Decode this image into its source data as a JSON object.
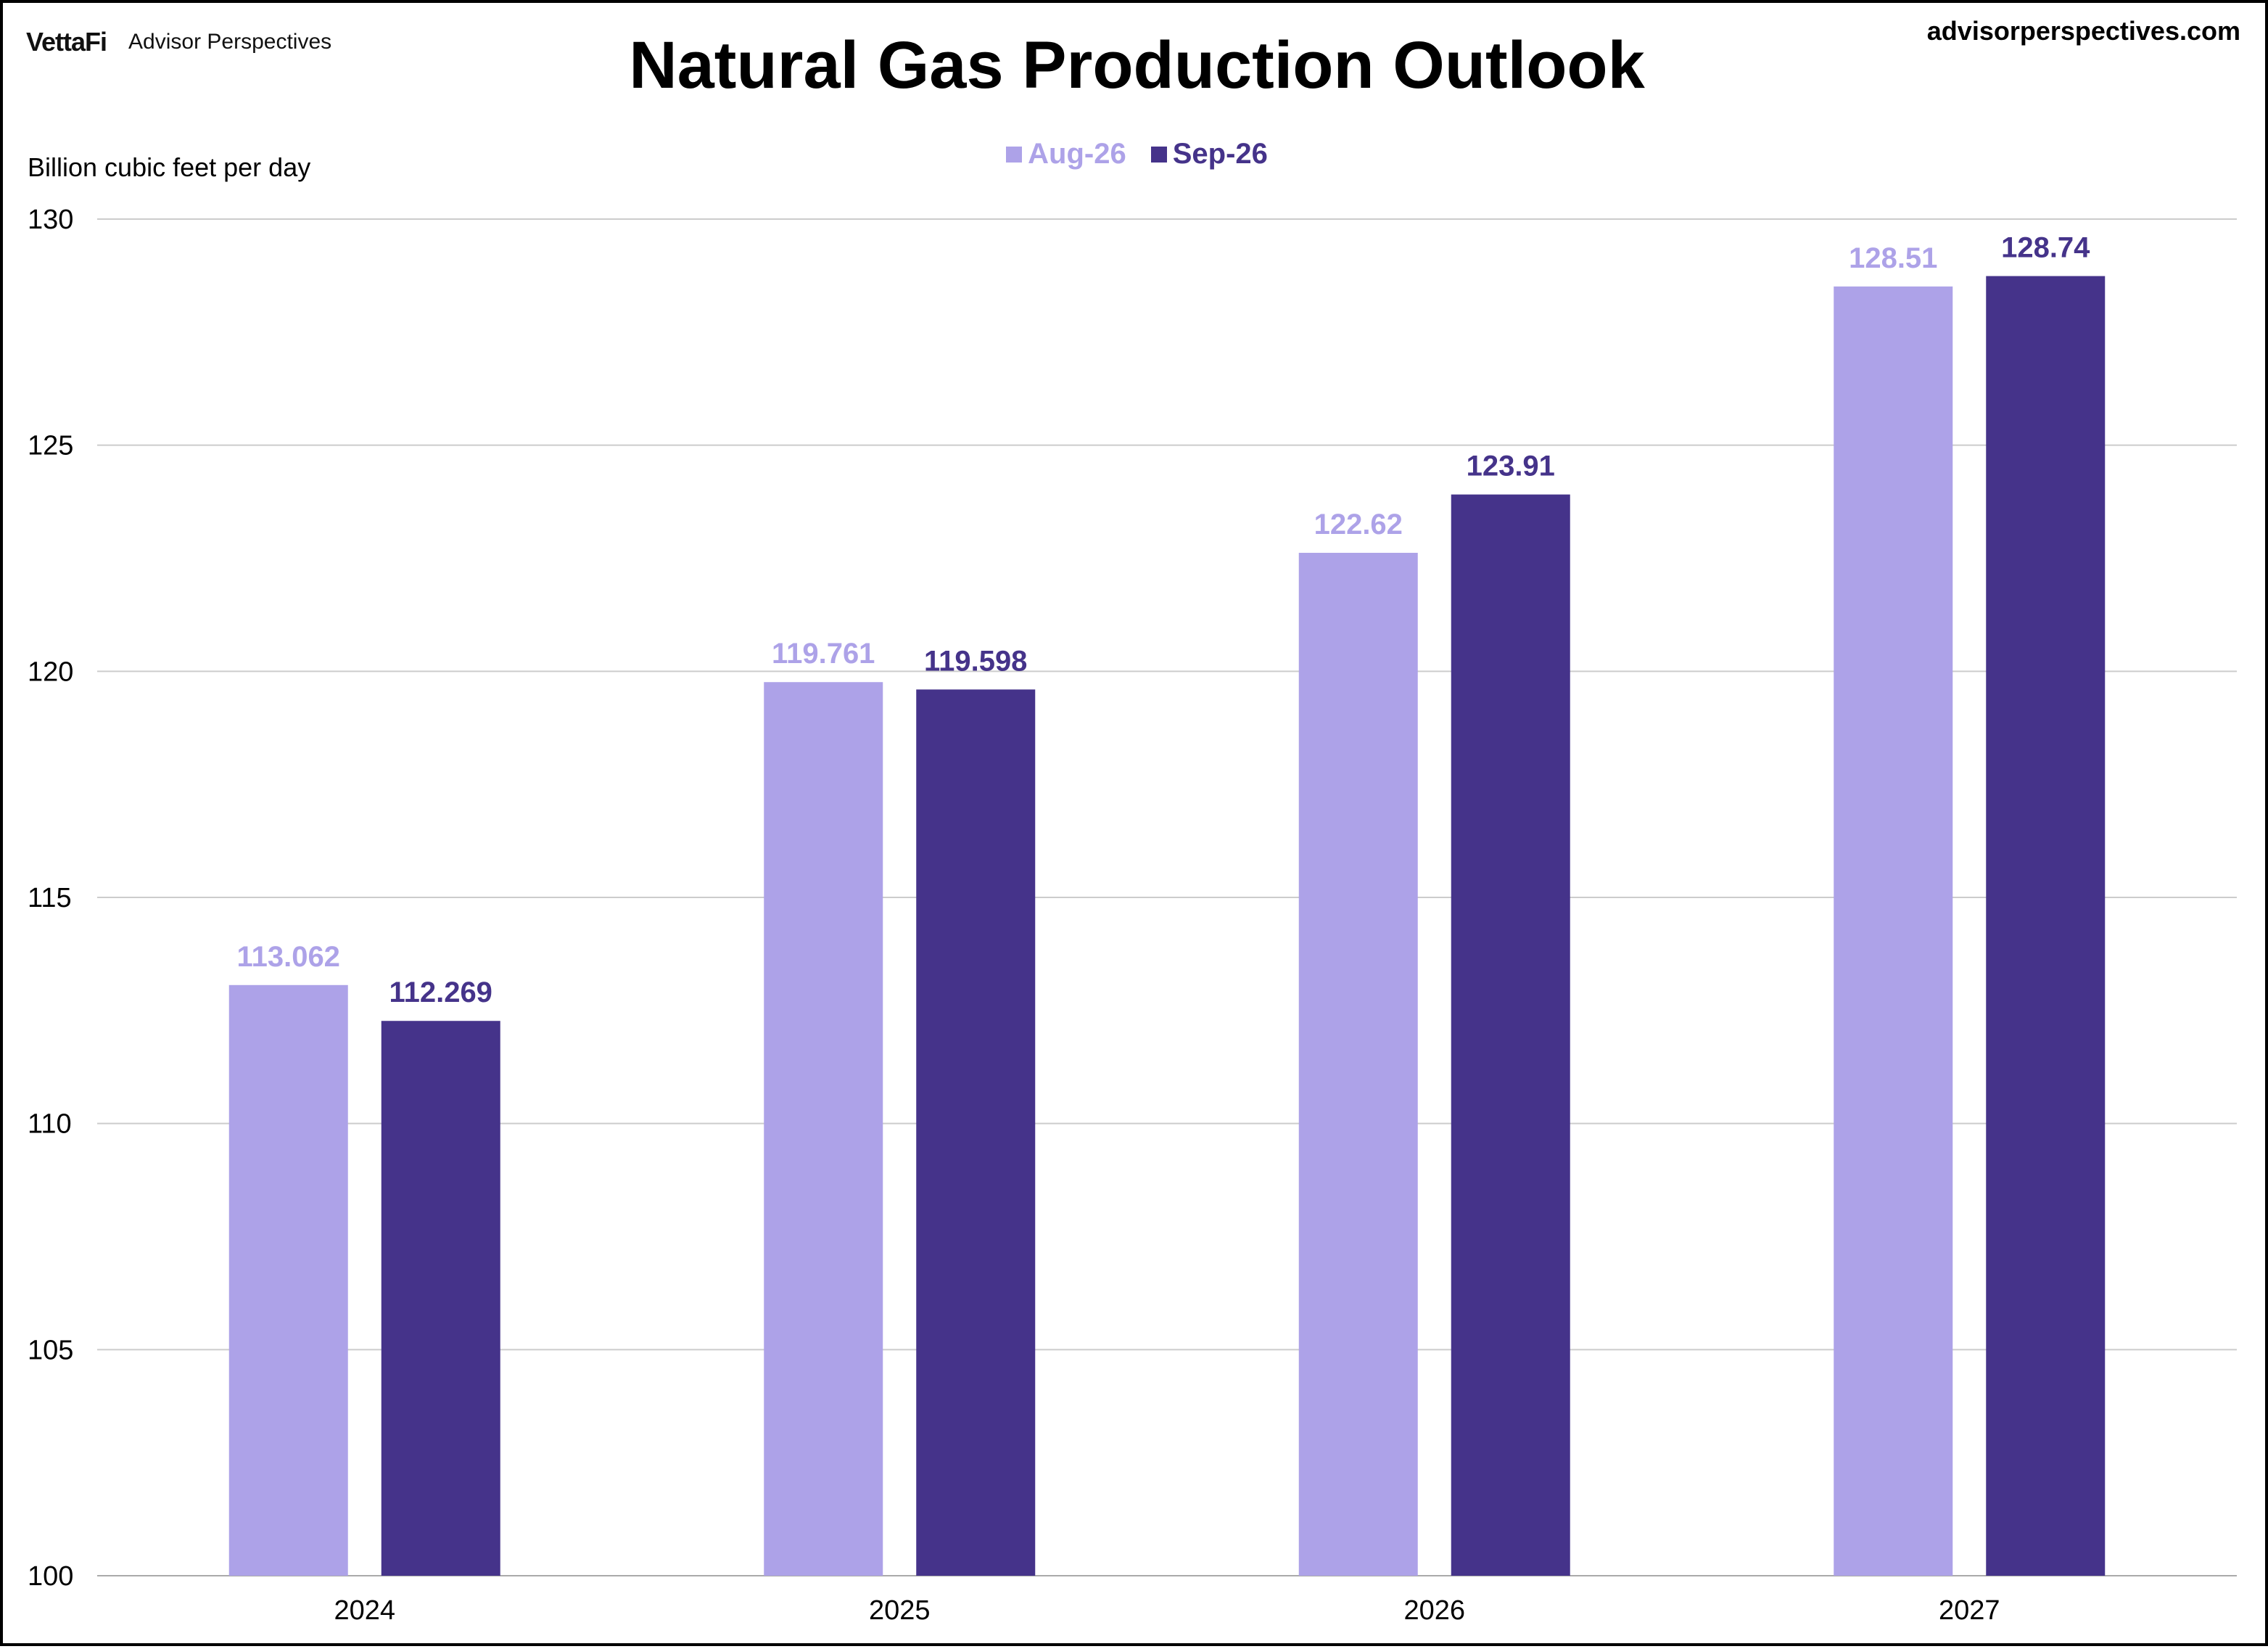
{
  "header": {
    "brand_logo": "VettaFi",
    "brand_name": "Advisor Perspectives",
    "site": "advisorperspectives.com"
  },
  "colors": {
    "aug": "#ada2e8",
    "sep": "#45338a",
    "grid": "#cccccc",
    "axis": "#aaaaaa"
  },
  "chart_data": {
    "type": "bar",
    "title": "Natural Gas Production Outlook",
    "ylabel": "Billion cubic feet per day",
    "xlabel": "",
    "categories": [
      "2024",
      "2025",
      "2026",
      "2027"
    ],
    "series": [
      {
        "name": "Aug-26",
        "values": [
          113.062,
          119.761,
          122.62,
          128.51
        ],
        "labels": [
          "113.062",
          "119.761",
          "122.62",
          "128.51"
        ]
      },
      {
        "name": "Sep-26",
        "values": [
          112.269,
          119.598,
          123.91,
          128.74
        ],
        "labels": [
          "112.269",
          "119.598",
          "123.91",
          "128.74"
        ]
      }
    ],
    "ylim": [
      100,
      130
    ],
    "yticks": [
      100,
      105,
      110,
      115,
      120,
      125,
      130
    ],
    "grid": true,
    "legend": "top-center"
  }
}
